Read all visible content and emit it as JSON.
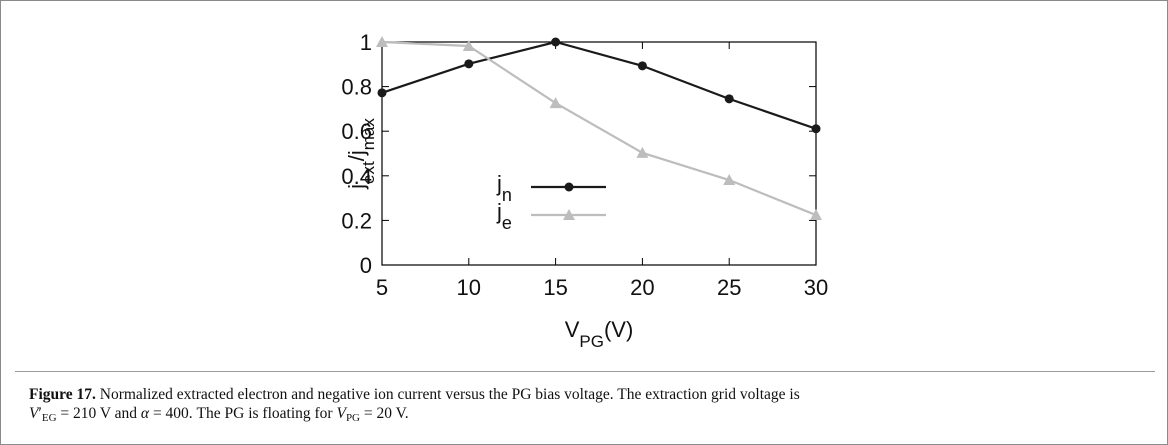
{
  "chart_data": {
    "type": "line",
    "xlabel_parts": [
      {
        "text": "V"
      },
      {
        "text": "PG",
        "sub": true
      },
      {
        "text": "(V)"
      }
    ],
    "ylabel_parts": [
      {
        "text": "j"
      },
      {
        "text": "ext",
        "sub": true
      },
      {
        "text": "/j"
      },
      {
        "text": "max",
        "sub": true
      }
    ],
    "x": [
      5,
      10,
      15,
      20,
      25,
      30
    ],
    "series": [
      {
        "name": "jn",
        "color": "#1a1a1a",
        "marker": "circle",
        "values": [
          0.772,
          0.902,
          1.0,
          0.893,
          0.745,
          0.611
        ]
      },
      {
        "name": "je",
        "color": "#bdbdbd",
        "marker": "triangle",
        "values": [
          1.0,
          0.982,
          0.726,
          0.503,
          0.381,
          0.224
        ]
      }
    ],
    "xlim": [
      5,
      30
    ],
    "xticks": [
      5,
      10,
      15,
      20,
      25,
      30
    ],
    "ylim": [
      0,
      1
    ],
    "yticks": [
      0,
      0.2,
      0.4,
      0.6,
      0.8,
      1
    ]
  },
  "caption": {
    "lines": [
      [
        {
          "text": "Figure 17.",
          "style": "b"
        },
        {
          "text": " Normalized extracted electron and negative ion current versus the PG bias voltage. The extraction grid voltage is"
        }
      ],
      [
        {
          "text": "V",
          "style": "i"
        },
        {
          "text": "′"
        },
        {
          "text": "EG",
          "style": "sub"
        },
        {
          "text": " = 210 V and "
        },
        {
          "text": "α",
          "style": "i"
        },
        {
          "text": " = 400. The PG is floating for "
        },
        {
          "text": "V",
          "style": "i"
        },
        {
          "text": "PG",
          "style": "sub"
        },
        {
          "text": " = 20 V."
        }
      ]
    ]
  }
}
